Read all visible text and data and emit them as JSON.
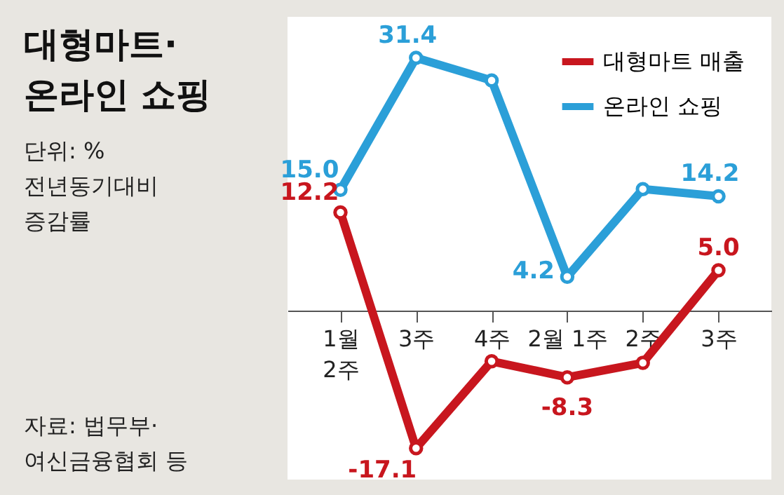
{
  "chart_data": {
    "type": "line",
    "title": "대형마트·\n온라인 쇼핑",
    "subtitle": "단위: %\n전년동기대비\n증감률",
    "annotations": [
      "자료: 법무부·\n여신금융협회 등"
    ],
    "categories": [
      "1월\n2주",
      "3주",
      "4주",
      "2월 1주",
      "2주",
      "3주"
    ],
    "series": [
      {
        "name": "대형마트 매출",
        "color": "#c8161e",
        "values": [
          12.2,
          -17.1,
          -6.3,
          -8.3,
          -6.5,
          5.0
        ],
        "value_labels": [
          "12.2",
          "-17.1",
          null,
          "-8.3",
          null,
          "5.0"
        ]
      },
      {
        "name": "온라인 쇼핑",
        "color": "#2b9fd8",
        "values": [
          15.0,
          31.4,
          28.6,
          4.2,
          15.1,
          14.2
        ],
        "value_labels": [
          "15.0",
          "31.4",
          null,
          "4.2",
          null,
          "14.2"
        ]
      }
    ],
    "ylim": [
      -21,
      36.5
    ],
    "tick_labels": "x",
    "grid": false,
    "legend": "top right",
    "marker": "circle",
    "line_style": "solid"
  }
}
